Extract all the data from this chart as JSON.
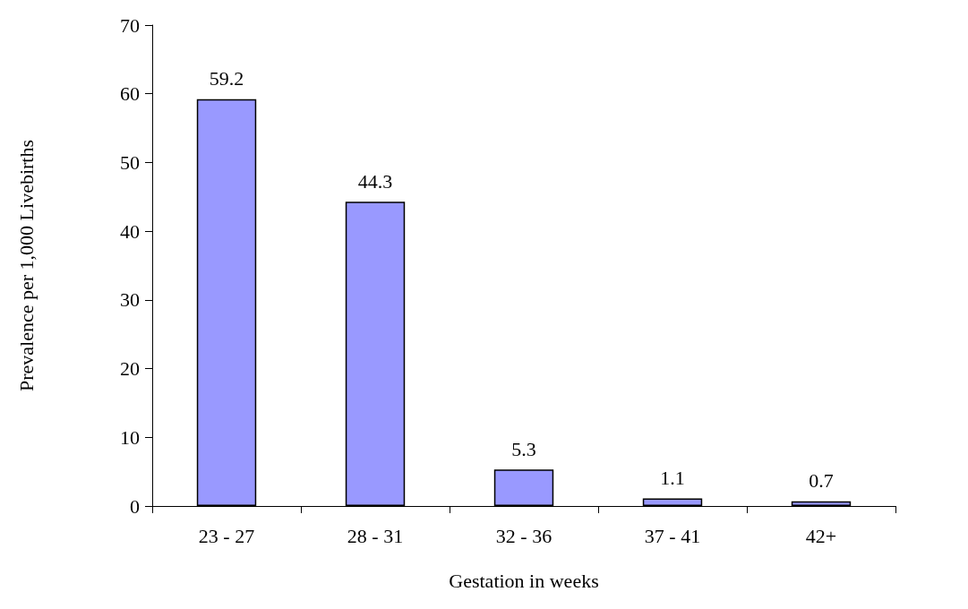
{
  "chart_data": {
    "type": "bar",
    "xlabel": "Gestation in weeks",
    "ylabel": "Prevalence per 1,000 Livebirths",
    "categories": [
      "23 - 27",
      "28 - 31",
      "32 - 36",
      "37 - 41",
      "42+"
    ],
    "values": [
      59.2,
      44.3,
      5.3,
      1.1,
      0.7
    ],
    "color": "#9999ff",
    "ylim": [
      0,
      70
    ],
    "yticks": [
      0,
      10,
      20,
      30,
      40,
      50,
      60,
      70
    ],
    "grid": false,
    "data_labels": true
  }
}
